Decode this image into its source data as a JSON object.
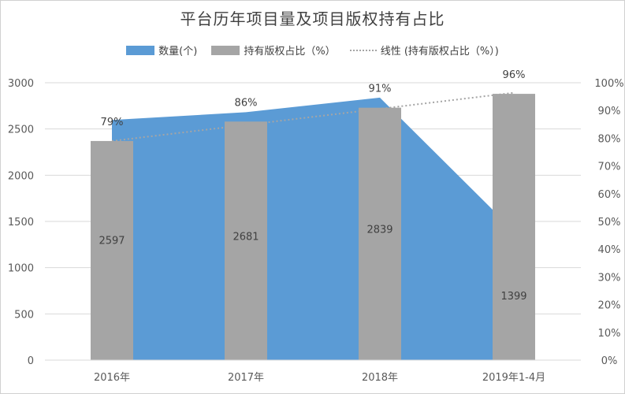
{
  "chart_data": {
    "type": "bar",
    "title": "平台历年项目量及项目版权持有占比",
    "categories": [
      "2016年",
      "2017年",
      "2018年",
      "2019年1-4月"
    ],
    "series": [
      {
        "name": "数量(个)",
        "kind": "area",
        "axis": "left",
        "color": "#5b9bd5",
        "values": [
          2597,
          2681,
          2839,
          1399
        ]
      },
      {
        "name": "持有版权占比（%）",
        "kind": "bar",
        "axis": "right",
        "color": "#a5a5a5",
        "values": [
          79,
          86,
          91,
          96
        ],
        "labels": [
          "79%",
          "86%",
          "91%",
          "96%"
        ]
      },
      {
        "name": "线性 (持有版权占比（%）)",
        "kind": "trendline",
        "axis": "right",
        "color": "#a5a5a5",
        "values": [
          79,
          84.8,
          90.6,
          96.4
        ]
      }
    ],
    "area_labels": [
      "2597",
      "2681",
      "2839",
      "1399"
    ],
    "yleft": {
      "min": 0,
      "max": 3000,
      "ticks": [
        "0",
        "500",
        "1000",
        "1500",
        "2000",
        "2500",
        "3000"
      ]
    },
    "yright": {
      "min": 0,
      "max": 100,
      "ticks": [
        "0%",
        "10%",
        "20%",
        "30%",
        "40%",
        "50%",
        "60%",
        "70%",
        "80%",
        "90%",
        "100%"
      ]
    },
    "legend_position": "top",
    "grid": true
  }
}
